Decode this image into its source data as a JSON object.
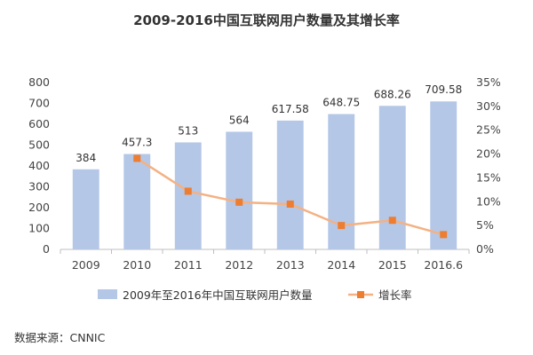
{
  "chart_data": {
    "type": "bar",
    "title": "2009-2016中国互联网用户数量及其增长率",
    "categories": [
      "2009",
      "2010",
      "2011",
      "2012",
      "2013",
      "2014",
      "2015",
      "2016.6"
    ],
    "series": [
      {
        "name": "2009年至2016年中国互联网用户数量",
        "type": "bar",
        "axis": "left",
        "color": "#b4c7e7",
        "values": [
          384,
          457.3,
          513,
          564,
          617.58,
          648.75,
          688.26,
          709.58
        ],
        "labels": [
          "384",
          "457.3",
          "513",
          "564",
          "617.58",
          "648.75",
          "688.26",
          "709.58"
        ]
      },
      {
        "name": "增长率",
        "type": "line",
        "axis": "right",
        "color": "#f4b183",
        "marker_color": "#ed7d31",
        "values": [
          null,
          19.1,
          12.2,
          9.9,
          9.5,
          5.0,
          6.1,
          3.1
        ]
      }
    ],
    "y_left": {
      "min": 0,
      "max": 800,
      "step": 100,
      "tick_labels": [
        "0",
        "100",
        "200",
        "300",
        "400",
        "500",
        "600",
        "700",
        "800"
      ]
    },
    "y_right": {
      "min": 0,
      "max": 35,
      "step": 5,
      "tick_labels": [
        "0%",
        "5%",
        "10%",
        "15%",
        "20%",
        "25%",
        "30%",
        "35%"
      ]
    },
    "legend": "bottom",
    "grid": false
  },
  "source_text": "数据来源：CNNIC"
}
